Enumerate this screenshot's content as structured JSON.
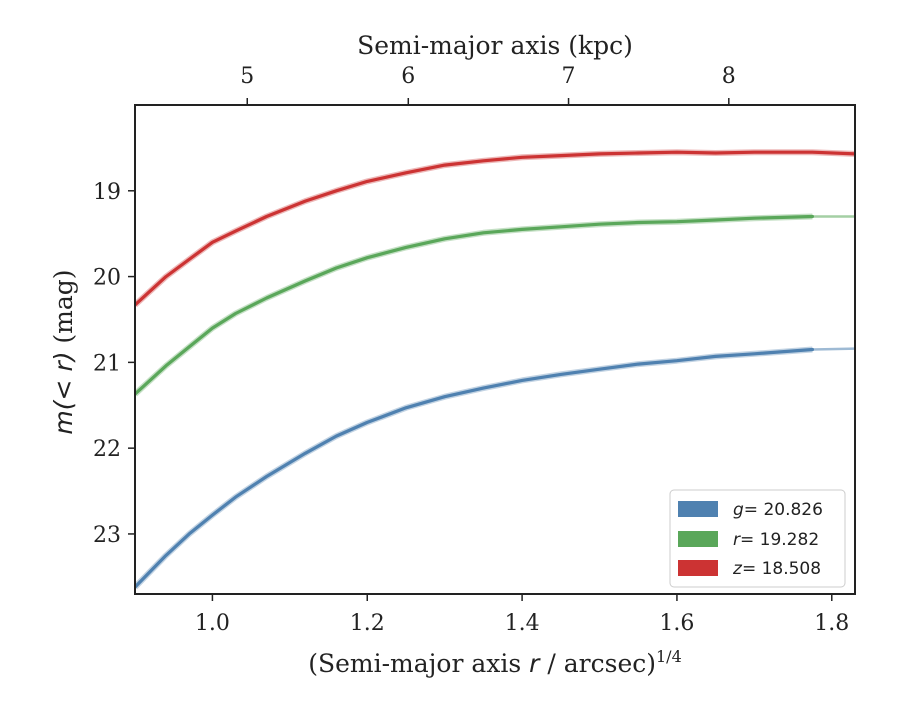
{
  "chart_data": {
    "type": "line",
    "title": "",
    "xlabel_prefix": "(Semi-major axis ",
    "xlabel_var": "r",
    "xlabel_suffix": " / arcsec)",
    "xlabel_exponent": "1/4",
    "ylabel_main": "m(< r)",
    "ylabel_unit": " (mag)",
    "top_xlabel": "Semi-major axis (kpc)",
    "xlim": [
      0.9,
      1.83
    ],
    "ylim": [
      23.7,
      18.0
    ],
    "y_inverted": true,
    "xticks": [
      "1.0",
      "1.2",
      "1.4",
      "1.6",
      "1.8"
    ],
    "yticks": [
      "19",
      "20",
      "21",
      "22",
      "23"
    ],
    "top_ticks": [
      "5",
      "6",
      "7",
      "8"
    ],
    "top_ticks_x_position": [
      1.045,
      1.253,
      1.46,
      1.667
    ],
    "grid": false,
    "legend_position": "bottom-right",
    "series": [
      {
        "name": "g = 20.826",
        "var": "g",
        "value": "= 20.826",
        "color": "#4f81b0",
        "x": [
          0.9,
          0.94,
          0.97,
          1.0,
          1.03,
          1.07,
          1.12,
          1.16,
          1.2,
          1.25,
          1.3,
          1.35,
          1.4,
          1.45,
          1.5,
          1.55,
          1.6,
          1.65,
          1.7,
          1.775
        ],
        "y": [
          23.62,
          23.25,
          23.0,
          22.78,
          22.57,
          22.33,
          22.06,
          21.86,
          21.7,
          21.53,
          21.4,
          21.3,
          21.21,
          21.14,
          21.08,
          21.02,
          20.98,
          20.93,
          20.9,
          20.85
        ],
        "faint_x": [
          1.775,
          1.83
        ],
        "faint_y": [
          20.85,
          20.84
        ]
      },
      {
        "name": "r = 19.282",
        "var": "r",
        "value": "= 19.282",
        "color": "#5aa75a",
        "x": [
          0.9,
          0.94,
          0.97,
          1.0,
          1.03,
          1.07,
          1.12,
          1.16,
          1.2,
          1.25,
          1.3,
          1.35,
          1.4,
          1.45,
          1.5,
          1.55,
          1.6,
          1.65,
          1.7,
          1.775
        ],
        "y": [
          21.37,
          21.04,
          20.82,
          20.6,
          20.43,
          20.25,
          20.05,
          19.9,
          19.78,
          19.66,
          19.56,
          19.49,
          19.45,
          19.42,
          19.39,
          19.37,
          19.36,
          19.34,
          19.32,
          19.3
        ],
        "faint_x": [
          1.775,
          1.83
        ],
        "faint_y": [
          19.3,
          19.3
        ]
      },
      {
        "name": "z = 18.508",
        "var": "z",
        "value": "= 18.508",
        "color": "#cc3333",
        "x": [
          0.9,
          0.94,
          0.97,
          1.0,
          1.03,
          1.07,
          1.12,
          1.16,
          1.2,
          1.25,
          1.3,
          1.35,
          1.4,
          1.45,
          1.5,
          1.55,
          1.6,
          1.65,
          1.7,
          1.75,
          1.775,
          1.83
        ],
        "y": [
          20.33,
          20.0,
          19.8,
          19.6,
          19.47,
          19.3,
          19.12,
          19.0,
          18.89,
          18.79,
          18.7,
          18.65,
          18.61,
          18.59,
          18.57,
          18.56,
          18.55,
          18.56,
          18.55,
          18.55,
          18.55,
          18.57
        ],
        "faint_x": [],
        "faint_y": []
      }
    ]
  }
}
